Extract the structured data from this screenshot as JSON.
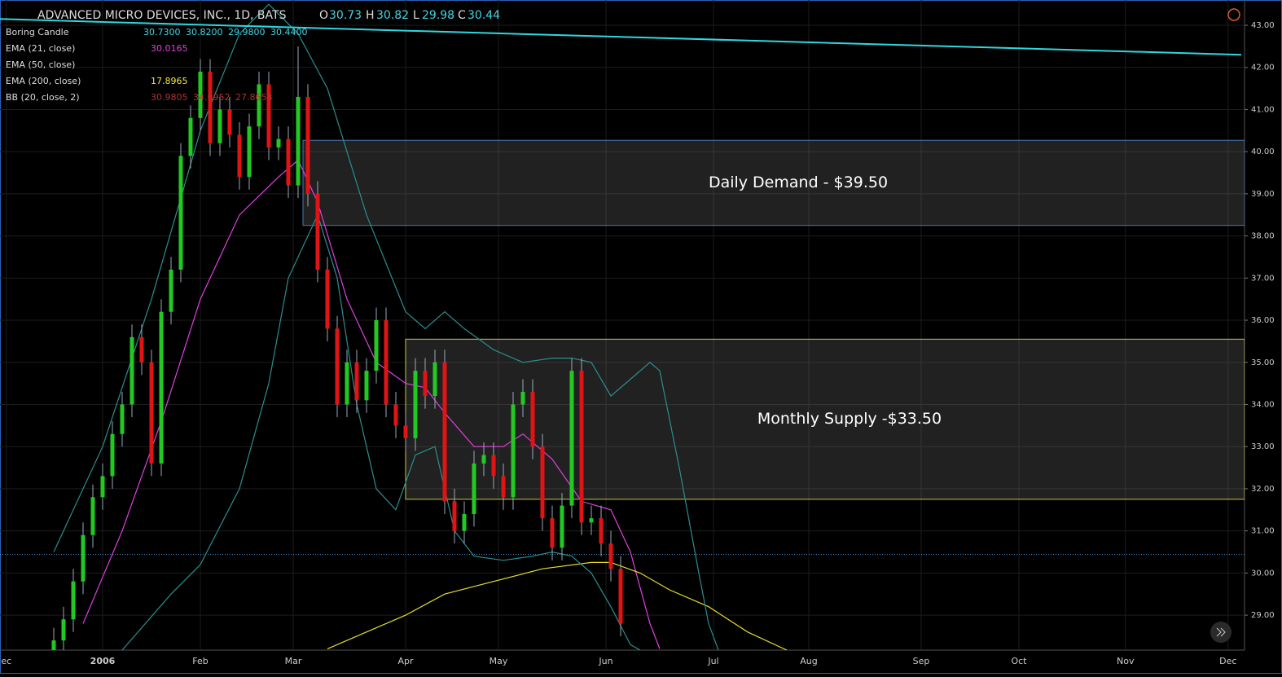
{
  "header": {
    "symbol": "ADVANCED MICRO DEVICES, INC., 1D, BATS",
    "o_label": "O",
    "o": "30.73",
    "h_label": "H",
    "h": "30.82",
    "l_label": "L",
    "l": "29.98",
    "c_label": "C",
    "c": "30.44"
  },
  "legend": [
    {
      "name": "Boring Candle",
      "values": [
        "30.7300",
        "30.8200",
        "29.9800",
        "30.4400"
      ],
      "color": "#3fd6e6"
    },
    {
      "name": "EMA (21, close)",
      "values": [
        "30.0165"
      ],
      "color": "#e040e0"
    },
    {
      "name": "EMA (50, close)",
      "values": [],
      "color": "#3fd6e6"
    },
    {
      "name": "EMA (200, close)",
      "values": [
        "17.8965"
      ],
      "color": "#f2e63a"
    },
    {
      "name": "BB (20, close, 2)",
      "values": [
        "30.9805",
        "34.0952",
        "27.8658"
      ],
      "color": "#b03030"
    }
  ],
  "chart_data": {
    "type": "candlestick",
    "xlim": [
      -21,
      233.67
    ],
    "ylim": [
      28.17,
      43.6
    ],
    "xticks": [
      {
        "value": -19.7,
        "label": "ec"
      },
      {
        "value": 0,
        "label": "2006"
      },
      {
        "value": 20,
        "label": "Feb"
      },
      {
        "value": 39,
        "label": "Mar"
      },
      {
        "value": 62,
        "label": "Apr"
      },
      {
        "value": 81,
        "label": "May"
      },
      {
        "value": 103,
        "label": "Jun"
      },
      {
        "value": 125,
        "label": "Jul"
      },
      {
        "value": 144.5,
        "label": "Aug"
      },
      {
        "value": 167.5,
        "label": "Sep"
      },
      {
        "value": 187.5,
        "label": "Oct"
      },
      {
        "value": 209.3,
        "label": "Nov"
      },
      {
        "value": 230.3,
        "label": "Dec"
      }
    ],
    "yticks": [
      {
        "value": 29,
        "label": "29.00"
      },
      {
        "value": 30,
        "label": "30.00"
      },
      {
        "value": 31,
        "label": "31.00"
      },
      {
        "value": 32,
        "label": "32.00"
      },
      {
        "value": 33,
        "label": "33.00"
      },
      {
        "value": 34,
        "label": "34.00"
      },
      {
        "value": 35,
        "label": "35.00"
      },
      {
        "value": 36,
        "label": "36.00"
      },
      {
        "value": 37,
        "label": "37.00"
      },
      {
        "value": 38,
        "label": "38.00"
      },
      {
        "value": 39,
        "label": "39.00"
      },
      {
        "value": 40,
        "label": "40.00"
      },
      {
        "value": 41,
        "label": "41.00"
      },
      {
        "value": 42,
        "label": "42.00"
      },
      {
        "value": 43,
        "label": "43.00"
      }
    ],
    "grid": true,
    "up_color": "#22c922",
    "down_color": "#e01414",
    "x": [
      -10,
      -8,
      -6,
      -4,
      -2,
      0,
      2,
      4,
      6,
      8,
      10,
      12,
      14,
      16,
      18,
      20,
      22,
      24,
      26,
      28,
      30,
      32,
      34,
      36,
      38,
      40,
      42,
      44,
      46,
      48,
      50,
      52,
      54,
      56,
      58,
      60,
      62,
      64,
      66,
      68,
      70,
      72,
      74,
      76,
      78,
      80,
      82,
      84,
      86,
      88,
      90,
      92,
      94,
      96,
      98,
      100,
      102,
      104,
      106
    ],
    "open": [
      28.0,
      28.4,
      28.9,
      29.8,
      30.9,
      31.8,
      32.3,
      33.3,
      34.0,
      35.6,
      35.0,
      32.6,
      36.2,
      37.2,
      39.9,
      40.8,
      41.9,
      40.2,
      41.0,
      40.4,
      39.4,
      40.6,
      41.6,
      40.1,
      40.3,
      39.2,
      41.3,
      39.0,
      37.2,
      35.8,
      34.0,
      35.0,
      34.1,
      34.8,
      36.0,
      34.0,
      33.5,
      33.2,
      34.8,
      34.2,
      35.0,
      31.7,
      31.0,
      31.4,
      32.6,
      32.8,
      32.3,
      31.8,
      34.0,
      34.3,
      33.0,
      31.3,
      30.6,
      31.6,
      34.8,
      31.2,
      31.3,
      30.7,
      30.1
    ],
    "high": [
      28.7,
      29.2,
      30.1,
      31.2,
      32.1,
      32.6,
      33.6,
      34.3,
      35.9,
      35.9,
      35.3,
      36.5,
      37.5,
      40.2,
      41.1,
      42.2,
      42.2,
      41.3,
      41.3,
      40.7,
      40.9,
      41.9,
      41.9,
      40.6,
      40.6,
      42.5,
      41.6,
      39.3,
      37.5,
      36.1,
      35.3,
      35.3,
      35.1,
      36.3,
      36.3,
      34.3,
      33.8,
      35.1,
      35.1,
      35.3,
      35.3,
      32.0,
      31.7,
      32.9,
      33.1,
      33.1,
      32.6,
      34.3,
      34.6,
      34.6,
      33.3,
      31.6,
      31.9,
      35.1,
      35.1,
      31.6,
      31.6,
      31.0,
      30.4
    ],
    "low": [
      27.7,
      28.1,
      28.6,
      29.5,
      30.6,
      31.5,
      32.0,
      33.0,
      33.7,
      34.7,
      32.3,
      32.3,
      35.9,
      36.9,
      39.6,
      40.5,
      39.9,
      39.9,
      40.1,
      39.1,
      39.1,
      40.3,
      39.8,
      39.8,
      38.9,
      38.9,
      38.7,
      36.9,
      35.5,
      33.7,
      33.7,
      33.8,
      33.8,
      34.5,
      33.7,
      33.2,
      32.9,
      32.9,
      33.9,
      33.9,
      31.4,
      30.7,
      30.7,
      31.1,
      32.3,
      32.0,
      31.5,
      31.5,
      33.7,
      32.7,
      31.0,
      30.3,
      30.3,
      31.3,
      30.9,
      30.9,
      30.4,
      29.8,
      28.5
    ],
    "close": [
      28.4,
      28.9,
      29.8,
      30.9,
      31.8,
      32.3,
      33.3,
      34.0,
      35.6,
      35.0,
      32.6,
      36.2,
      37.2,
      39.9,
      40.8,
      41.9,
      40.2,
      41.0,
      40.4,
      39.4,
      40.6,
      41.6,
      40.1,
      40.3,
      39.2,
      41.3,
      39.0,
      37.2,
      35.8,
      34.0,
      35.0,
      34.1,
      34.8,
      36.0,
      34.0,
      33.5,
      33.2,
      34.8,
      34.2,
      35.0,
      31.7,
      31.0,
      31.4,
      32.6,
      32.8,
      32.3,
      31.8,
      34.0,
      34.3,
      33.0,
      31.3,
      30.6,
      31.6,
      34.8,
      31.2,
      31.3,
      30.7,
      30.1,
      28.8
    ],
    "lines": [
      {
        "name": "EMA (21, close)",
        "color": "#e040e0",
        "x": [
          -4,
          4,
          12,
          20,
          28,
          36,
          40,
          44,
          50,
          56,
          62,
          66,
          70,
          76,
          82,
          86,
          92,
          98,
          104,
          108,
          112,
          114
        ],
        "values": [
          28.8,
          31.0,
          33.6,
          36.5,
          38.5,
          39.4,
          39.8,
          38.8,
          36.5,
          35.0,
          34.5,
          34.4,
          33.8,
          33.0,
          33.0,
          33.3,
          32.7,
          31.7,
          31.5,
          30.5,
          28.8,
          28.2
        ]
      },
      {
        "name": "EMA (200, close)",
        "color": "#e6dc28",
        "x": [
          46,
          56,
          62,
          70,
          80,
          90,
          100,
          104,
          110,
          116,
          124,
          132,
          140
        ],
        "values": [
          28.2,
          28.7,
          29.0,
          29.5,
          29.8,
          30.1,
          30.25,
          30.25,
          30.0,
          29.6,
          29.2,
          28.6,
          28.17
        ]
      },
      {
        "name": "BB upper",
        "color": "#2b8f8f",
        "x": [
          -10,
          0,
          10,
          20,
          28,
          34,
          40,
          46,
          54,
          62,
          66,
          70,
          74,
          80,
          86,
          92,
          96,
          100,
          104,
          108,
          112,
          114,
          118,
          122,
          124,
          126
        ],
        "values": [
          30.5,
          33.0,
          36.5,
          40.5,
          42.8,
          43.5,
          42.8,
          41.5,
          38.5,
          36.2,
          35.8,
          36.2,
          35.8,
          35.3,
          35.0,
          35.1,
          35.1,
          35.0,
          34.2,
          34.6,
          35.0,
          34.8,
          32.5,
          30.0,
          28.8,
          28.17
        ]
      },
      {
        "name": "BB lower",
        "color": "#2b8f8f",
        "x": [
          4,
          14,
          20,
          28,
          34,
          38,
          44,
          48,
          52,
          56,
          60,
          64,
          68,
          72,
          76,
          82,
          88,
          92,
          96,
          100,
          104,
          108,
          110
        ],
        "values": [
          28.17,
          29.5,
          30.2,
          32.0,
          34.5,
          37.0,
          38.5,
          37.0,
          34.0,
          32.0,
          31.5,
          32.8,
          33.0,
          31.0,
          30.4,
          30.3,
          30.4,
          30.5,
          30.4,
          30.0,
          29.2,
          28.3,
          28.17
        ]
      },
      {
        "name": "Trendline",
        "color": "#2fd7e0",
        "x": [
          -21,
          233
        ],
        "values": [
          43.15,
          42.3
        ]
      }
    ],
    "zones": [
      {
        "label": "Daily Demand - $39.50",
        "start": 41,
        "low": 38.25,
        "high": 40.27,
        "color": "#4a78b0"
      },
      {
        "label": "Monthly Supply -$33.50",
        "start": 62,
        "low": 31.75,
        "high": 35.55,
        "color": "#c8c83a"
      }
    ],
    "last_price": 30.44
  }
}
